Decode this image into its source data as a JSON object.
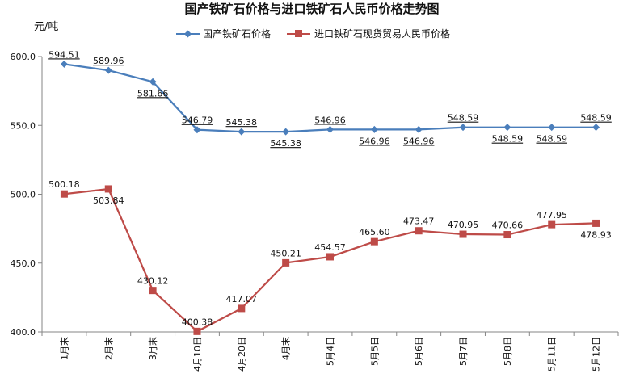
{
  "chart_data": {
    "type": "line",
    "title": "国产铁矿石价格与进口铁矿石人民币价格走势图",
    "ylabel": "元/吨",
    "xlabel": "",
    "ylim": [
      400,
      600
    ],
    "yticks": [
      "400.0",
      "450.0",
      "500.0",
      "550.0",
      "600.0"
    ],
    "ytick_values": [
      400,
      450,
      500,
      550,
      600
    ],
    "grid": false,
    "legend_position": "top",
    "categories": [
      "1月末",
      "2月末",
      "3月末",
      "4月10日",
      "4月20日",
      "4月末",
      "5月4日",
      "5月5日",
      "5月6日",
      "5月7日",
      "5月8日",
      "5月11日",
      "5月12日"
    ],
    "series": [
      {
        "name": "国产铁矿石价格",
        "color": "#4a7ebb",
        "marker": "diamond",
        "values": [
          594.51,
          589.96,
          581.66,
          546.79,
          545.38,
          545.38,
          546.96,
          546.96,
          546.96,
          548.59,
          548.59,
          548.59,
          548.59
        ],
        "labels": [
          "594.51",
          "589.96",
          "581.66",
          "546.79",
          "545.38",
          "545.38",
          "546.96",
          "546.96",
          "546.96",
          "548.59",
          "548.59",
          "548.59",
          "548.59"
        ]
      },
      {
        "name": "进口铁矿石现货贸易人民币价格",
        "color": "#be4b48",
        "marker": "square",
        "values": [
          500.18,
          503.84,
          430.12,
          400.38,
          417.07,
          450.21,
          454.57,
          465.6,
          473.47,
          470.95,
          470.66,
          477.95,
          478.93
        ],
        "labels": [
          "500.18",
          "503.84",
          "430.12",
          "400.38",
          "417.07",
          "450.21",
          "454.57",
          "465.60",
          "473.47",
          "470.95",
          "470.66",
          "477.95",
          "478.93"
        ]
      }
    ]
  }
}
